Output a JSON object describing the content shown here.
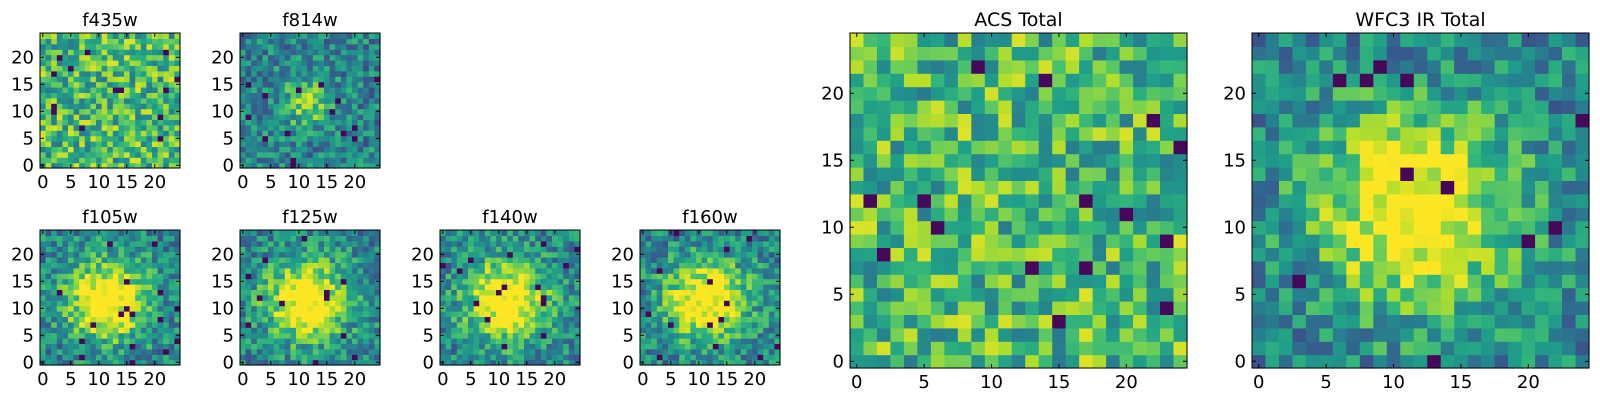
{
  "figure_note": "",
  "chart_data": [
    {
      "type": "heatmap",
      "title": "f435w",
      "grid_size": [
        25,
        25
      ],
      "x_ticks": [
        0,
        5,
        10,
        15,
        20
      ],
      "y_ticks": [
        0,
        5,
        10,
        15,
        20
      ],
      "xlim": [
        0,
        24
      ],
      "ylim": [
        0,
        24
      ],
      "colormap": "viridis",
      "pattern": "noise",
      "bright_center": false
    },
    {
      "type": "heatmap",
      "title": "f814w",
      "grid_size": [
        25,
        25
      ],
      "x_ticks": [
        0,
        5,
        10,
        15,
        20
      ],
      "y_ticks": [
        0,
        5,
        10,
        15,
        20
      ],
      "xlim": [
        0,
        24
      ],
      "ylim": [
        0,
        24
      ],
      "colormap": "viridis",
      "pattern": "faint source",
      "bright_center": true
    },
    {
      "type": "heatmap",
      "title": "f105w",
      "grid_size": [
        25,
        25
      ],
      "x_ticks": [
        0,
        5,
        10,
        15,
        20
      ],
      "y_ticks": [
        0,
        5,
        10,
        15,
        20
      ],
      "xlim": [
        0,
        24
      ],
      "ylim": [
        0,
        24
      ],
      "colormap": "viridis",
      "pattern": "central source",
      "bright_center": true
    },
    {
      "type": "heatmap",
      "title": "f125w",
      "grid_size": [
        25,
        25
      ],
      "x_ticks": [
        0,
        5,
        10,
        15,
        20
      ],
      "y_ticks": [
        0,
        5,
        10,
        15,
        20
      ],
      "xlim": [
        0,
        24
      ],
      "ylim": [
        0,
        24
      ],
      "colormap": "viridis",
      "pattern": "central source",
      "bright_center": true
    },
    {
      "type": "heatmap",
      "title": "f140w",
      "grid_size": [
        25,
        25
      ],
      "x_ticks": [
        0,
        5,
        10,
        15,
        20
      ],
      "y_ticks": [
        0,
        5,
        10,
        15,
        20
      ],
      "xlim": [
        0,
        24
      ],
      "ylim": [
        0,
        24
      ],
      "colormap": "viridis",
      "pattern": "central source",
      "bright_center": true
    },
    {
      "type": "heatmap",
      "title": "f160w",
      "grid_size": [
        25,
        25
      ],
      "x_ticks": [
        0,
        5,
        10,
        15,
        20
      ],
      "y_ticks": [
        0,
        5,
        10,
        15,
        20
      ],
      "xlim": [
        0,
        24
      ],
      "ylim": [
        0,
        24
      ],
      "colormap": "viridis",
      "pattern": "central source",
      "bright_center": true
    },
    {
      "type": "heatmap",
      "title": "ACS Total",
      "grid_size": [
        25,
        25
      ],
      "x_ticks": [
        0,
        5,
        10,
        15,
        20
      ],
      "y_ticks": [
        0,
        5,
        10,
        15,
        20
      ],
      "xlim": [
        0,
        24
      ],
      "ylim": [
        0,
        24
      ],
      "colormap": "viridis",
      "pattern": "noise",
      "bright_center": false
    },
    {
      "type": "heatmap",
      "title": "WFC3 IR Total",
      "grid_size": [
        25,
        25
      ],
      "x_ticks": [
        0,
        5,
        10,
        15,
        20
      ],
      "y_ticks": [
        0,
        5,
        10,
        15,
        20
      ],
      "xlim": [
        0,
        24
      ],
      "ylim": [
        0,
        24
      ],
      "colormap": "viridis",
      "pattern": "central source",
      "bright_center": true
    }
  ]
}
